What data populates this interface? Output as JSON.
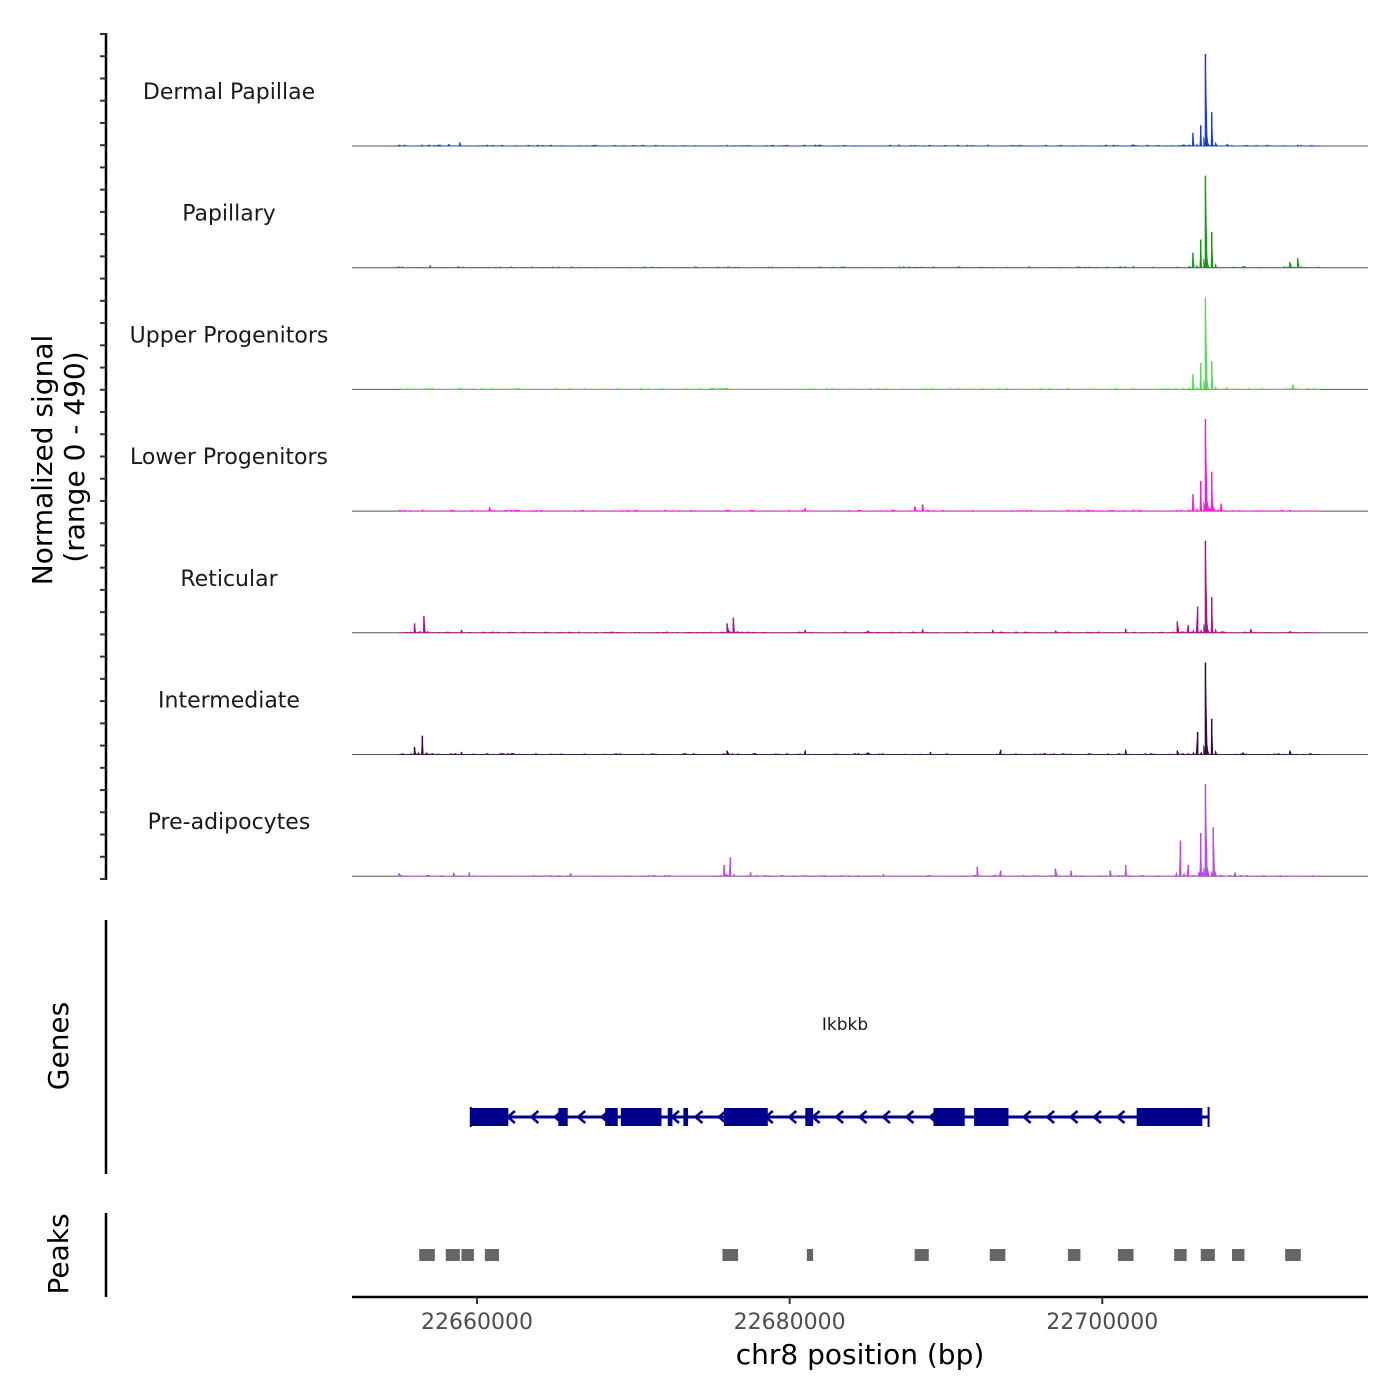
{
  "chart_data": {
    "type": "area",
    "chromosome": "chr8",
    "xlabel": "chr8 position (bp)",
    "ylabel_line1": "Normalized signal",
    "ylabel_line2": "(range 0 - 490)",
    "y_range": [
      0,
      490
    ],
    "x_range": [
      22652000,
      22717000
    ],
    "x_ticks": [
      22660000,
      22680000,
      22700000
    ],
    "x_tick_labels": [
      "22660000",
      "22680000",
      "22700000"
    ],
    "genes_label": "Genes",
    "peaks_label": "Peaks",
    "tracks": [
      {
        "name": "Dermal Papillae",
        "color": "#1a3fd0",
        "peaks": [
          [
            22655000,
            6
          ],
          [
            22656500,
            6
          ],
          [
            22657500,
            6
          ],
          [
            22658200,
            10
          ],
          [
            22658900,
            18
          ],
          [
            22676000,
            5
          ],
          [
            22681000,
            4
          ],
          [
            22687000,
            7
          ],
          [
            22702000,
            8
          ],
          [
            22705800,
            70
          ],
          [
            22706300,
            110
          ],
          [
            22706600,
            490
          ],
          [
            22707000,
            180
          ],
          [
            22708000,
            10
          ],
          [
            22712500,
            6
          ]
        ]
      },
      {
        "name": "Papillary",
        "color": "#149914",
        "peaks": [
          [
            22655000,
            5
          ],
          [
            22657000,
            12
          ],
          [
            22658800,
            7
          ],
          [
            22676000,
            4
          ],
          [
            22702000,
            8
          ],
          [
            22705800,
            80
          ],
          [
            22706300,
            150
          ],
          [
            22706600,
            490
          ],
          [
            22707000,
            190
          ],
          [
            22709000,
            8
          ],
          [
            22712000,
            30
          ],
          [
            22712500,
            50
          ]
        ]
      },
      {
        "name": "Upper Progenitors",
        "color": "#5cd65c",
        "peaks": [
          [
            22658800,
            6
          ],
          [
            22676000,
            8
          ],
          [
            22702000,
            6
          ],
          [
            22705800,
            80
          ],
          [
            22706300,
            140
          ],
          [
            22706600,
            490
          ],
          [
            22707000,
            150
          ],
          [
            22708000,
            10
          ],
          [
            22712200,
            25
          ]
        ]
      },
      {
        "name": "Lower Progenitors",
        "color": "#f21ed6",
        "peaks": [
          [
            22656500,
            8
          ],
          [
            22660800,
            20
          ],
          [
            22676000,
            6
          ],
          [
            22681000,
            15
          ],
          [
            22688000,
            25
          ],
          [
            22688500,
            35
          ],
          [
            22702000,
            8
          ],
          [
            22705800,
            90
          ],
          [
            22706300,
            160
          ],
          [
            22706600,
            490
          ],
          [
            22707000,
            210
          ],
          [
            22707600,
            40
          ],
          [
            22712000,
            6
          ]
        ]
      },
      {
        "name": "Reticular",
        "color": "#aa128f",
        "peaks": [
          [
            22656000,
            50
          ],
          [
            22656600,
            90
          ],
          [
            22659000,
            15
          ],
          [
            22676000,
            50
          ],
          [
            22676400,
            80
          ],
          [
            22681000,
            15
          ],
          [
            22685000,
            10
          ],
          [
            22688500,
            18
          ],
          [
            22693000,
            15
          ],
          [
            22697000,
            10
          ],
          [
            22701500,
            20
          ],
          [
            22704800,
            60
          ],
          [
            22705500,
            40
          ],
          [
            22706100,
            140
          ],
          [
            22706600,
            490
          ],
          [
            22707000,
            190
          ],
          [
            22709500,
            20
          ],
          [
            22712000,
            8
          ]
        ]
      },
      {
        "name": "Intermediate",
        "color": "#35094a",
        "peaks": [
          [
            22656000,
            40
          ],
          [
            22656500,
            100
          ],
          [
            22659000,
            12
          ],
          [
            22676000,
            20
          ],
          [
            22681000,
            20
          ],
          [
            22685000,
            10
          ],
          [
            22689000,
            12
          ],
          [
            22693500,
            25
          ],
          [
            22701500,
            25
          ],
          [
            22704800,
            20
          ],
          [
            22706100,
            120
          ],
          [
            22706600,
            490
          ],
          [
            22707000,
            190
          ],
          [
            22709000,
            10
          ],
          [
            22712000,
            20
          ]
        ]
      },
      {
        "name": "Pre-adipocytes",
        "color": "#b94be8",
        "peaks": [
          [
            22655000,
            15
          ],
          [
            22658500,
            18
          ],
          [
            22659500,
            20
          ],
          [
            22666000,
            15
          ],
          [
            22675800,
            60
          ],
          [
            22676200,
            100
          ],
          [
            22677500,
            20
          ],
          [
            22686000,
            10
          ],
          [
            22692000,
            50
          ],
          [
            22693500,
            30
          ],
          [
            22697000,
            40
          ],
          [
            22698000,
            30
          ],
          [
            22700500,
            30
          ],
          [
            22701500,
            60
          ],
          [
            22705000,
            190
          ],
          [
            22705500,
            60
          ],
          [
            22706300,
            230
          ],
          [
            22706600,
            490
          ],
          [
            22707100,
            260
          ],
          [
            22708500,
            20
          ]
        ]
      }
    ],
    "gene": {
      "name": "Ikbkb",
      "strand": "-",
      "start": 22659600,
      "end": 22706800,
      "color": "#00008b",
      "exons": [
        [
          22659600,
          22662000
        ],
        [
          22665200,
          22665800
        ],
        [
          22668200,
          22669000
        ],
        [
          22669200,
          22671800
        ],
        [
          22672200,
          22672500
        ],
        [
          22673200,
          22673500
        ],
        [
          22675800,
          22678600
        ],
        [
          22681000,
          22681500
        ],
        [
          22689200,
          22691200
        ],
        [
          22691800,
          22694000
        ],
        [
          22702200,
          22706400
        ]
      ]
    },
    "peak_regions": [
      [
        22656300,
        22657300
      ],
      [
        22658000,
        22658900
      ],
      [
        22659000,
        22659800
      ],
      [
        22660500,
        22661400
      ],
      [
        22675700,
        22676700
      ],
      [
        22681100,
        22681500
      ],
      [
        22688000,
        22688900
      ],
      [
        22692800,
        22693800
      ],
      [
        22697800,
        22698600
      ],
      [
        22701000,
        22702000
      ],
      [
        22704600,
        22705400
      ],
      [
        22706300,
        22707200
      ],
      [
        22708300,
        22709100
      ],
      [
        22711700,
        22712700
      ]
    ]
  }
}
